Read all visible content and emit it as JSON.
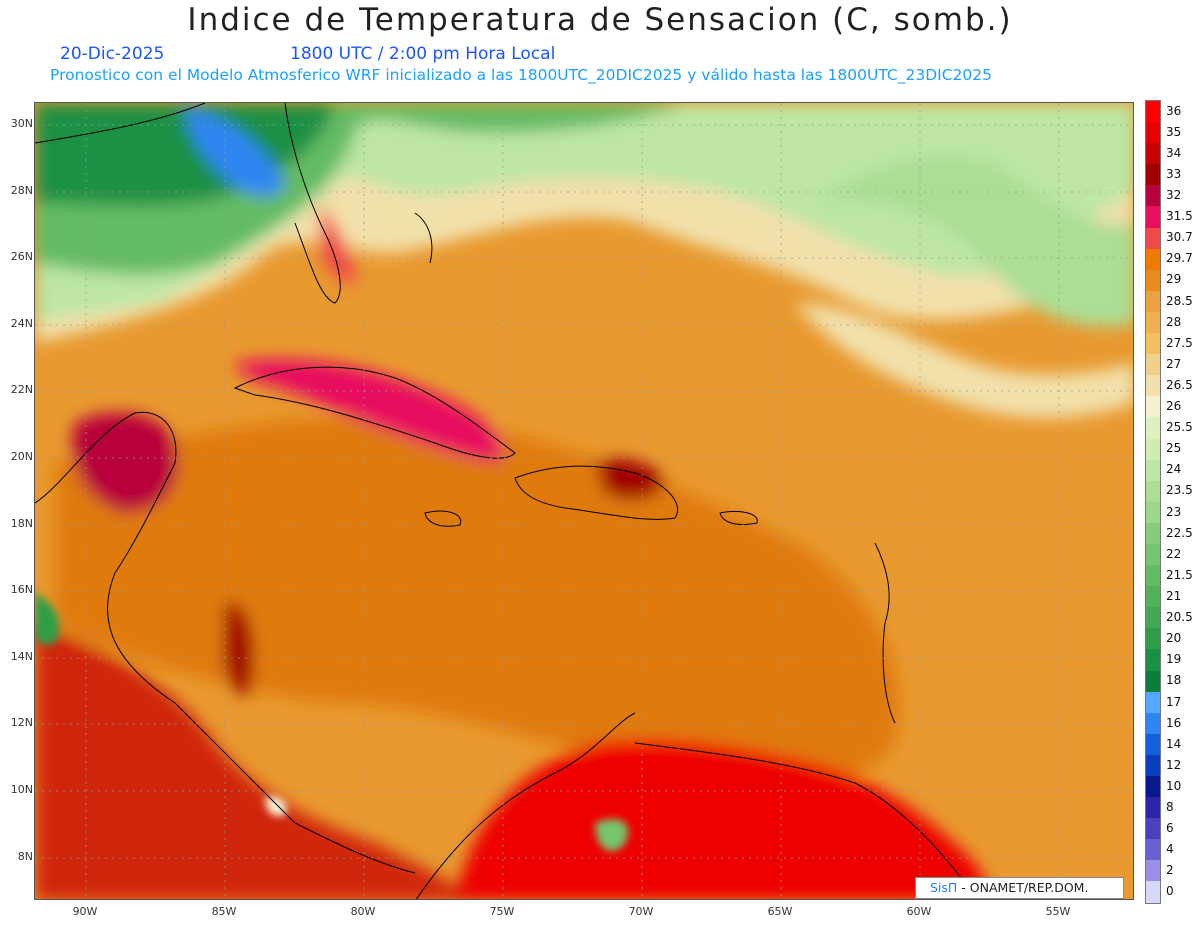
{
  "title": "Indice de Temperatura de Sensacion (C, somb.)",
  "date": "20-Dic-2025",
  "time_utc": "1800 UTC / 2:00 pm Hora Local",
  "forecast_line": "Pronostico con el Modelo Atmosferico WRF inicializado a las 1800UTC_20DIC2025 y válido hasta las  1800UTC_23DIC2025",
  "map": {
    "lat_labels": [
      "30N",
      "28N",
      "26N",
      "24N",
      "22N",
      "20N",
      "18N",
      "16N",
      "14N",
      "12N",
      "10N",
      "8N"
    ],
    "lon_labels": [
      "90W",
      "85W",
      "80W",
      "75W",
      "70W",
      "65W",
      "60W",
      "55W"
    ]
  },
  "colorbar": {
    "labels": [
      "36",
      "35",
      "34",
      "33",
      "32",
      "31.5",
      "30.7",
      "29.7",
      "29",
      "28.5",
      "28",
      "27.5",
      "27",
      "26.5",
      "26",
      "25.5",
      "25",
      "24",
      "23.5",
      "23",
      "22.5",
      "22",
      "21.5",
      "21",
      "20.5",
      "20",
      "19",
      "18",
      "17",
      "16",
      "14",
      "12",
      "10",
      "8",
      "6",
      "4",
      "2",
      "0"
    ],
    "colors": [
      "#ff0000",
      "#e60000",
      "#c80000",
      "#a00000",
      "#b8003a",
      "#e8105e",
      "#f04a4a",
      "#ee7a00",
      "#e88a1e",
      "#eca040",
      "#f0b050",
      "#f2c060",
      "#f0d088",
      "#f2e0aa",
      "#f4f0d0",
      "#dff0c0",
      "#d0ecb0",
      "#bde6a4",
      "#acde94",
      "#9cd688",
      "#88cc7a",
      "#76c46e",
      "#64bb64",
      "#52b25a",
      "#42a852",
      "#2f9e4a",
      "#1a9044",
      "#0c7e3c",
      "#54a8ff",
      "#2e86f2",
      "#1460dc",
      "#0a3cc0",
      "#0a1890",
      "#2a24a8",
      "#4a40c0",
      "#6a60d4",
      "#9a90e8",
      "#d8d8f8"
    ]
  },
  "credit": {
    "brand": "SisΠ",
    "text": " - ONAMET/REP.DOM."
  }
}
